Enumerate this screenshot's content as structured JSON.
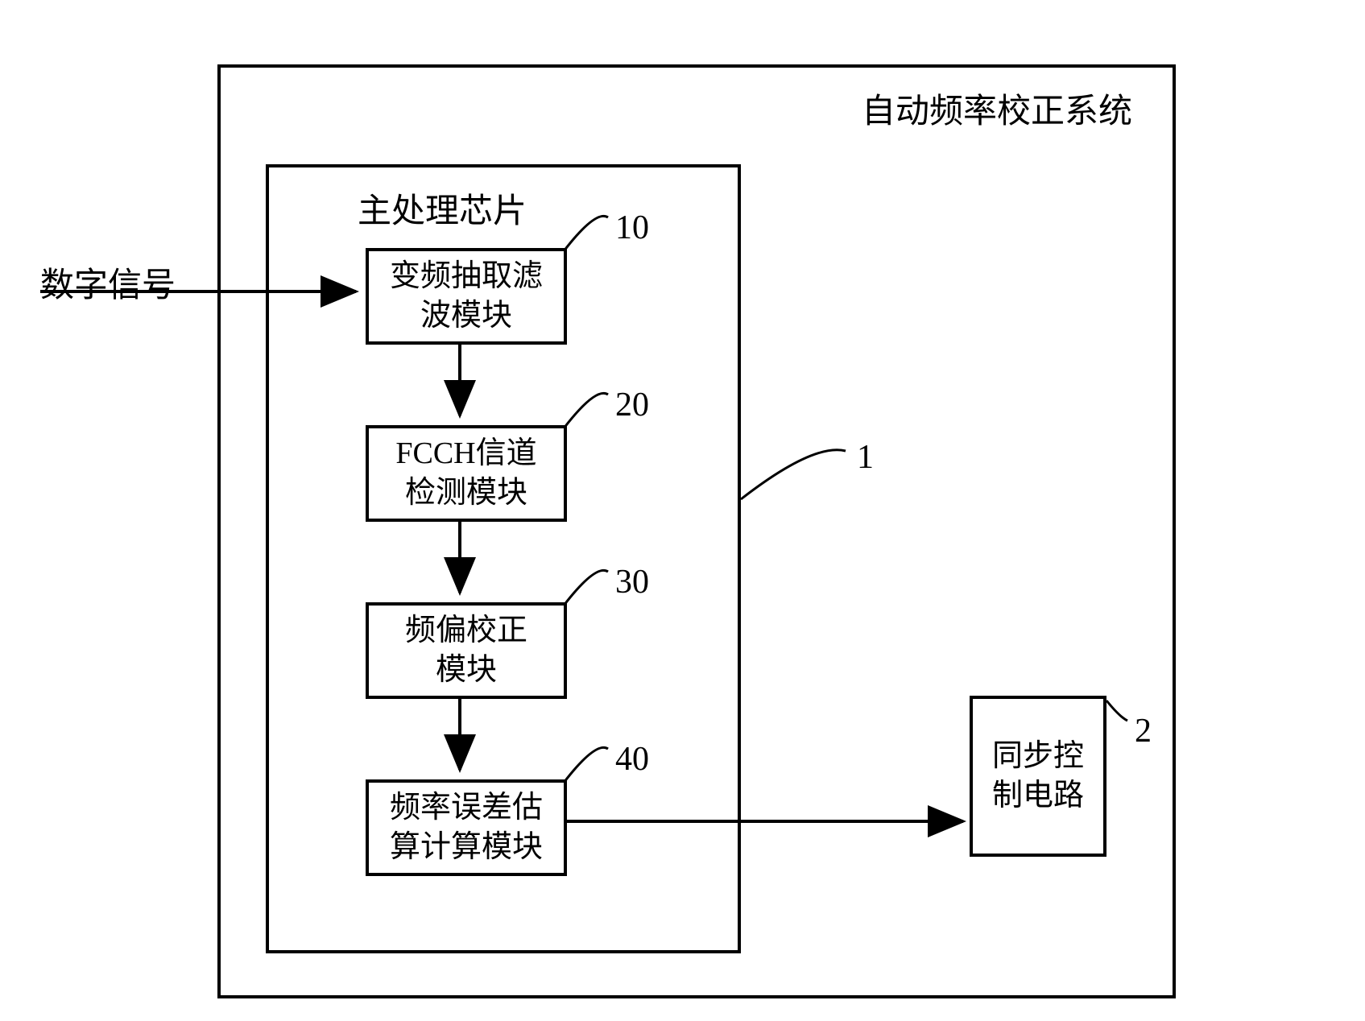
{
  "diagram": {
    "type": "flowchart",
    "system_title": "自动频率校正系统",
    "chip_title": "主处理芯片",
    "input_label": "数字信号",
    "modules": [
      {
        "id": "10",
        "label": "变频抽取滤\n波模块"
      },
      {
        "id": "20",
        "label": "FCCH信道\n检测模块"
      },
      {
        "id": "30",
        "label": "频偏校正\n模块"
      },
      {
        "id": "40",
        "label": "频率误差估\n算计算模块"
      }
    ],
    "sync_box": {
      "id": "2",
      "label": "同步控\n制电路"
    },
    "chip_id": "1",
    "colors": {
      "border": "#000000",
      "background": "#ffffff",
      "text": "#000000"
    },
    "line_width": 4,
    "font_size_title": 42,
    "font_size_module": 38,
    "font_size_label": 42
  }
}
